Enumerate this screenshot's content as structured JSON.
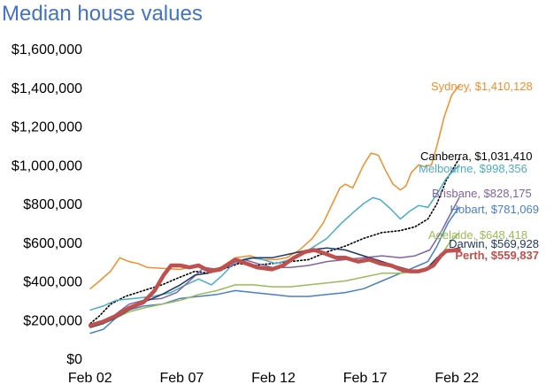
{
  "chart_data": {
    "type": "line",
    "title": "Median house values",
    "xlabel": "",
    "ylabel": "",
    "grid": false,
    "legend": "none",
    "x_tick_labels": [
      "Feb 02",
      "Feb 07",
      "Feb 12",
      "Feb 17",
      "Feb 22"
    ],
    "x_tick_values": [
      2002.08,
      2007.08,
      2012.08,
      2017.08,
      2022.08
    ],
    "xlim": [
      2001.9,
      2022.6
    ],
    "y_tick_labels": [
      "$0",
      "$200,000",
      "$400,000",
      "$600,000",
      "$800,000",
      "$1,000,000",
      "$1,200,000",
      "$1,400,000",
      "$1,600,000"
    ],
    "ylim": [
      0,
      1600000
    ],
    "series": [
      {
        "name": "Sydney",
        "label": "Sydney, $1,410,128",
        "color": "#f28e2b",
        "style": "solid",
        "width": 1.5,
        "points": [
          [
            2002.1,
            360000
          ],
          [
            2002.6,
            400000
          ],
          [
            2003.2,
            450000
          ],
          [
            2003.7,
            520000
          ],
          [
            2004.2,
            500000
          ],
          [
            2004.7,
            490000
          ],
          [
            2005.2,
            470000
          ],
          [
            2006.0,
            465000
          ],
          [
            2007.0,
            460000
          ],
          [
            2008.0,
            480000
          ],
          [
            2008.7,
            460000
          ],
          [
            2009.2,
            470000
          ],
          [
            2010.0,
            520000
          ],
          [
            2010.8,
            530000
          ],
          [
            2011.5,
            510000
          ],
          [
            2012.2,
            510000
          ],
          [
            2012.8,
            520000
          ],
          [
            2013.5,
            560000
          ],
          [
            2014.2,
            620000
          ],
          [
            2014.8,
            700000
          ],
          [
            2015.3,
            800000
          ],
          [
            2015.7,
            880000
          ],
          [
            2016.0,
            900000
          ],
          [
            2016.4,
            880000
          ],
          [
            2016.7,
            940000
          ],
          [
            2017.0,
            1000000
          ],
          [
            2017.4,
            1060000
          ],
          [
            2017.8,
            1050000
          ],
          [
            2018.2,
            970000
          ],
          [
            2018.6,
            900000
          ],
          [
            2019.0,
            870000
          ],
          [
            2019.3,
            890000
          ],
          [
            2019.6,
            960000
          ],
          [
            2020.0,
            1000000
          ],
          [
            2020.3,
            990000
          ],
          [
            2020.7,
            1000000
          ],
          [
            2021.0,
            1100000
          ],
          [
            2021.4,
            1250000
          ],
          [
            2021.8,
            1360000
          ],
          [
            2022.2,
            1410128
          ]
        ]
      },
      {
        "name": "Canberra",
        "label": "Canberra, $1,031,410",
        "color": "#000000",
        "style": "dotted",
        "width": 1.6,
        "points": [
          [
            2002.1,
            180000
          ],
          [
            2002.6,
            220000
          ],
          [
            2003.2,
            280000
          ],
          [
            2004.0,
            320000
          ],
          [
            2005.0,
            350000
          ],
          [
            2006.0,
            380000
          ],
          [
            2007.0,
            420000
          ],
          [
            2007.8,
            450000
          ],
          [
            2008.5,
            440000
          ],
          [
            2009.3,
            460000
          ],
          [
            2010.2,
            490000
          ],
          [
            2011.0,
            480000
          ],
          [
            2012.0,
            490000
          ],
          [
            2013.0,
            500000
          ],
          [
            2014.0,
            510000
          ],
          [
            2015.0,
            550000
          ],
          [
            2016.0,
            580000
          ],
          [
            2017.0,
            620000
          ],
          [
            2018.0,
            650000
          ],
          [
            2019.0,
            660000
          ],
          [
            2019.8,
            680000
          ],
          [
            2020.5,
            720000
          ],
          [
            2021.0,
            800000
          ],
          [
            2021.5,
            920000
          ],
          [
            2022.2,
            1031410
          ]
        ]
      },
      {
        "name": "Melbourne",
        "label": "Melbourne, $998,356",
        "color": "#4bacc6",
        "style": "solid",
        "width": 1.5,
        "points": [
          [
            2002.1,
            250000
          ],
          [
            2002.8,
            270000
          ],
          [
            2003.5,
            300000
          ],
          [
            2004.5,
            310000
          ],
          [
            2005.5,
            320000
          ],
          [
            2006.5,
            340000
          ],
          [
            2007.3,
            380000
          ],
          [
            2008.0,
            410000
          ],
          [
            2008.7,
            380000
          ],
          [
            2009.3,
            430000
          ],
          [
            2010.0,
            500000
          ],
          [
            2010.8,
            520000
          ],
          [
            2011.5,
            510000
          ],
          [
            2012.2,
            490000
          ],
          [
            2013.0,
            510000
          ],
          [
            2014.0,
            560000
          ],
          [
            2015.0,
            620000
          ],
          [
            2015.8,
            700000
          ],
          [
            2016.5,
            760000
          ],
          [
            2017.0,
            800000
          ],
          [
            2017.5,
            830000
          ],
          [
            2017.9,
            820000
          ],
          [
            2018.5,
            770000
          ],
          [
            2019.0,
            720000
          ],
          [
            2019.5,
            760000
          ],
          [
            2020.0,
            790000
          ],
          [
            2020.5,
            780000
          ],
          [
            2021.0,
            850000
          ],
          [
            2021.5,
            930000
          ],
          [
            2022.2,
            998356
          ]
        ]
      },
      {
        "name": "Brisbane",
        "label": "Brisbane, $828,175",
        "color": "#8064a2",
        "style": "solid",
        "width": 1.5,
        "points": [
          [
            2002.1,
            170000
          ],
          [
            2002.8,
            180000
          ],
          [
            2003.5,
            230000
          ],
          [
            2004.2,
            280000
          ],
          [
            2005.0,
            300000
          ],
          [
            2006.0,
            310000
          ],
          [
            2006.8,
            340000
          ],
          [
            2007.5,
            400000
          ],
          [
            2008.3,
            470000
          ],
          [
            2009.0,
            460000
          ],
          [
            2009.8,
            480000
          ],
          [
            2010.5,
            510000
          ],
          [
            2011.2,
            490000
          ],
          [
            2012.0,
            470000
          ],
          [
            2013.0,
            470000
          ],
          [
            2014.0,
            480000
          ],
          [
            2015.0,
            500000
          ],
          [
            2016.0,
            510000
          ],
          [
            2017.0,
            520000
          ],
          [
            2018.0,
            530000
          ],
          [
            2019.0,
            520000
          ],
          [
            2019.8,
            530000
          ],
          [
            2020.6,
            560000
          ],
          [
            2021.2,
            650000
          ],
          [
            2021.7,
            740000
          ],
          [
            2022.2,
            828175
          ]
        ]
      },
      {
        "name": "Hobart",
        "label": "Hobart, $781,069",
        "color": "#4a7fc1",
        "style": "solid",
        "width": 1.5,
        "points": [
          [
            2002.1,
            130000
          ],
          [
            2002.8,
            150000
          ],
          [
            2003.5,
            210000
          ],
          [
            2004.2,
            250000
          ],
          [
            2005.0,
            270000
          ],
          [
            2006.0,
            280000
          ],
          [
            2007.0,
            310000
          ],
          [
            2008.0,
            320000
          ],
          [
            2009.0,
            330000
          ],
          [
            2010.0,
            350000
          ],
          [
            2011.0,
            340000
          ],
          [
            2012.0,
            330000
          ],
          [
            2013.0,
            320000
          ],
          [
            2014.0,
            320000
          ],
          [
            2015.0,
            330000
          ],
          [
            2016.0,
            340000
          ],
          [
            2017.0,
            360000
          ],
          [
            2018.0,
            400000
          ],
          [
            2019.0,
            440000
          ],
          [
            2020.0,
            480000
          ],
          [
            2020.5,
            500000
          ],
          [
            2021.0,
            580000
          ],
          [
            2021.6,
            700000
          ],
          [
            2022.2,
            781069
          ]
        ]
      },
      {
        "name": "Adelaide",
        "label": "Adelaide, $648,418",
        "color": "#9bbb59",
        "style": "solid",
        "width": 1.5,
        "points": [
          [
            2002.1,
            160000
          ],
          [
            2002.8,
            180000
          ],
          [
            2003.5,
            210000
          ],
          [
            2004.2,
            240000
          ],
          [
            2005.0,
            260000
          ],
          [
            2006.0,
            280000
          ],
          [
            2007.0,
            300000
          ],
          [
            2008.0,
            330000
          ],
          [
            2009.0,
            350000
          ],
          [
            2010.0,
            380000
          ],
          [
            2011.0,
            380000
          ],
          [
            2012.0,
            370000
          ],
          [
            2013.0,
            370000
          ],
          [
            2014.0,
            380000
          ],
          [
            2015.0,
            390000
          ],
          [
            2016.0,
            400000
          ],
          [
            2017.0,
            420000
          ],
          [
            2018.0,
            440000
          ],
          [
            2019.0,
            440000
          ],
          [
            2020.0,
            450000
          ],
          [
            2020.6,
            470000
          ],
          [
            2021.2,
            530000
          ],
          [
            2021.7,
            600000
          ],
          [
            2022.2,
            648418
          ]
        ]
      },
      {
        "name": "Darwin",
        "label": "Darwin, $569,928",
        "color": "#1f3864",
        "style": "solid",
        "width": 1.5,
        "points": [
          [
            2002.1,
            160000
          ],
          [
            2002.8,
            180000
          ],
          [
            2003.5,
            210000
          ],
          [
            2004.2,
            250000
          ],
          [
            2005.0,
            290000
          ],
          [
            2006.0,
            330000
          ],
          [
            2007.0,
            380000
          ],
          [
            2007.8,
            430000
          ],
          [
            2008.5,
            440000
          ],
          [
            2009.2,
            470000
          ],
          [
            2010.0,
            500000
          ],
          [
            2011.0,
            520000
          ],
          [
            2012.0,
            520000
          ],
          [
            2013.0,
            540000
          ],
          [
            2014.0,
            560000
          ],
          [
            2015.0,
            570000
          ],
          [
            2016.0,
            560000
          ],
          [
            2017.0,
            530000
          ],
          [
            2018.0,
            500000
          ],
          [
            2019.0,
            470000
          ],
          [
            2019.8,
            450000
          ],
          [
            2020.4,
            460000
          ],
          [
            2021.0,
            520000
          ],
          [
            2021.6,
            560000
          ],
          [
            2022.2,
            569928
          ]
        ]
      },
      {
        "name": "Perth",
        "label": "Perth, $559,837",
        "color": "#c0504d",
        "style": "solid",
        "width": 4.5,
        "points": [
          [
            2002.1,
            170000
          ],
          [
            2002.8,
            190000
          ],
          [
            2003.5,
            220000
          ],
          [
            2004.2,
            260000
          ],
          [
            2005.0,
            290000
          ],
          [
            2005.6,
            350000
          ],
          [
            2006.1,
            430000
          ],
          [
            2006.5,
            480000
          ],
          [
            2007.0,
            480000
          ],
          [
            2007.5,
            470000
          ],
          [
            2008.0,
            480000
          ],
          [
            2008.6,
            450000
          ],
          [
            2009.2,
            460000
          ],
          [
            2010.0,
            510000
          ],
          [
            2010.6,
            490000
          ],
          [
            2011.2,
            470000
          ],
          [
            2012.0,
            460000
          ],
          [
            2012.6,
            480000
          ],
          [
            2013.2,
            520000
          ],
          [
            2013.8,
            550000
          ],
          [
            2014.3,
            560000
          ],
          [
            2014.8,
            545000
          ],
          [
            2015.5,
            520000
          ],
          [
            2016.0,
            520000
          ],
          [
            2016.7,
            500000
          ],
          [
            2017.3,
            510000
          ],
          [
            2017.9,
            490000
          ],
          [
            2018.5,
            480000
          ],
          [
            2019.0,
            460000
          ],
          [
            2019.5,
            450000
          ],
          [
            2020.0,
            450000
          ],
          [
            2020.4,
            460000
          ],
          [
            2020.8,
            480000
          ],
          [
            2021.2,
            530000
          ],
          [
            2021.5,
            555000
          ],
          [
            2022.2,
            559837
          ]
        ]
      }
    ]
  }
}
